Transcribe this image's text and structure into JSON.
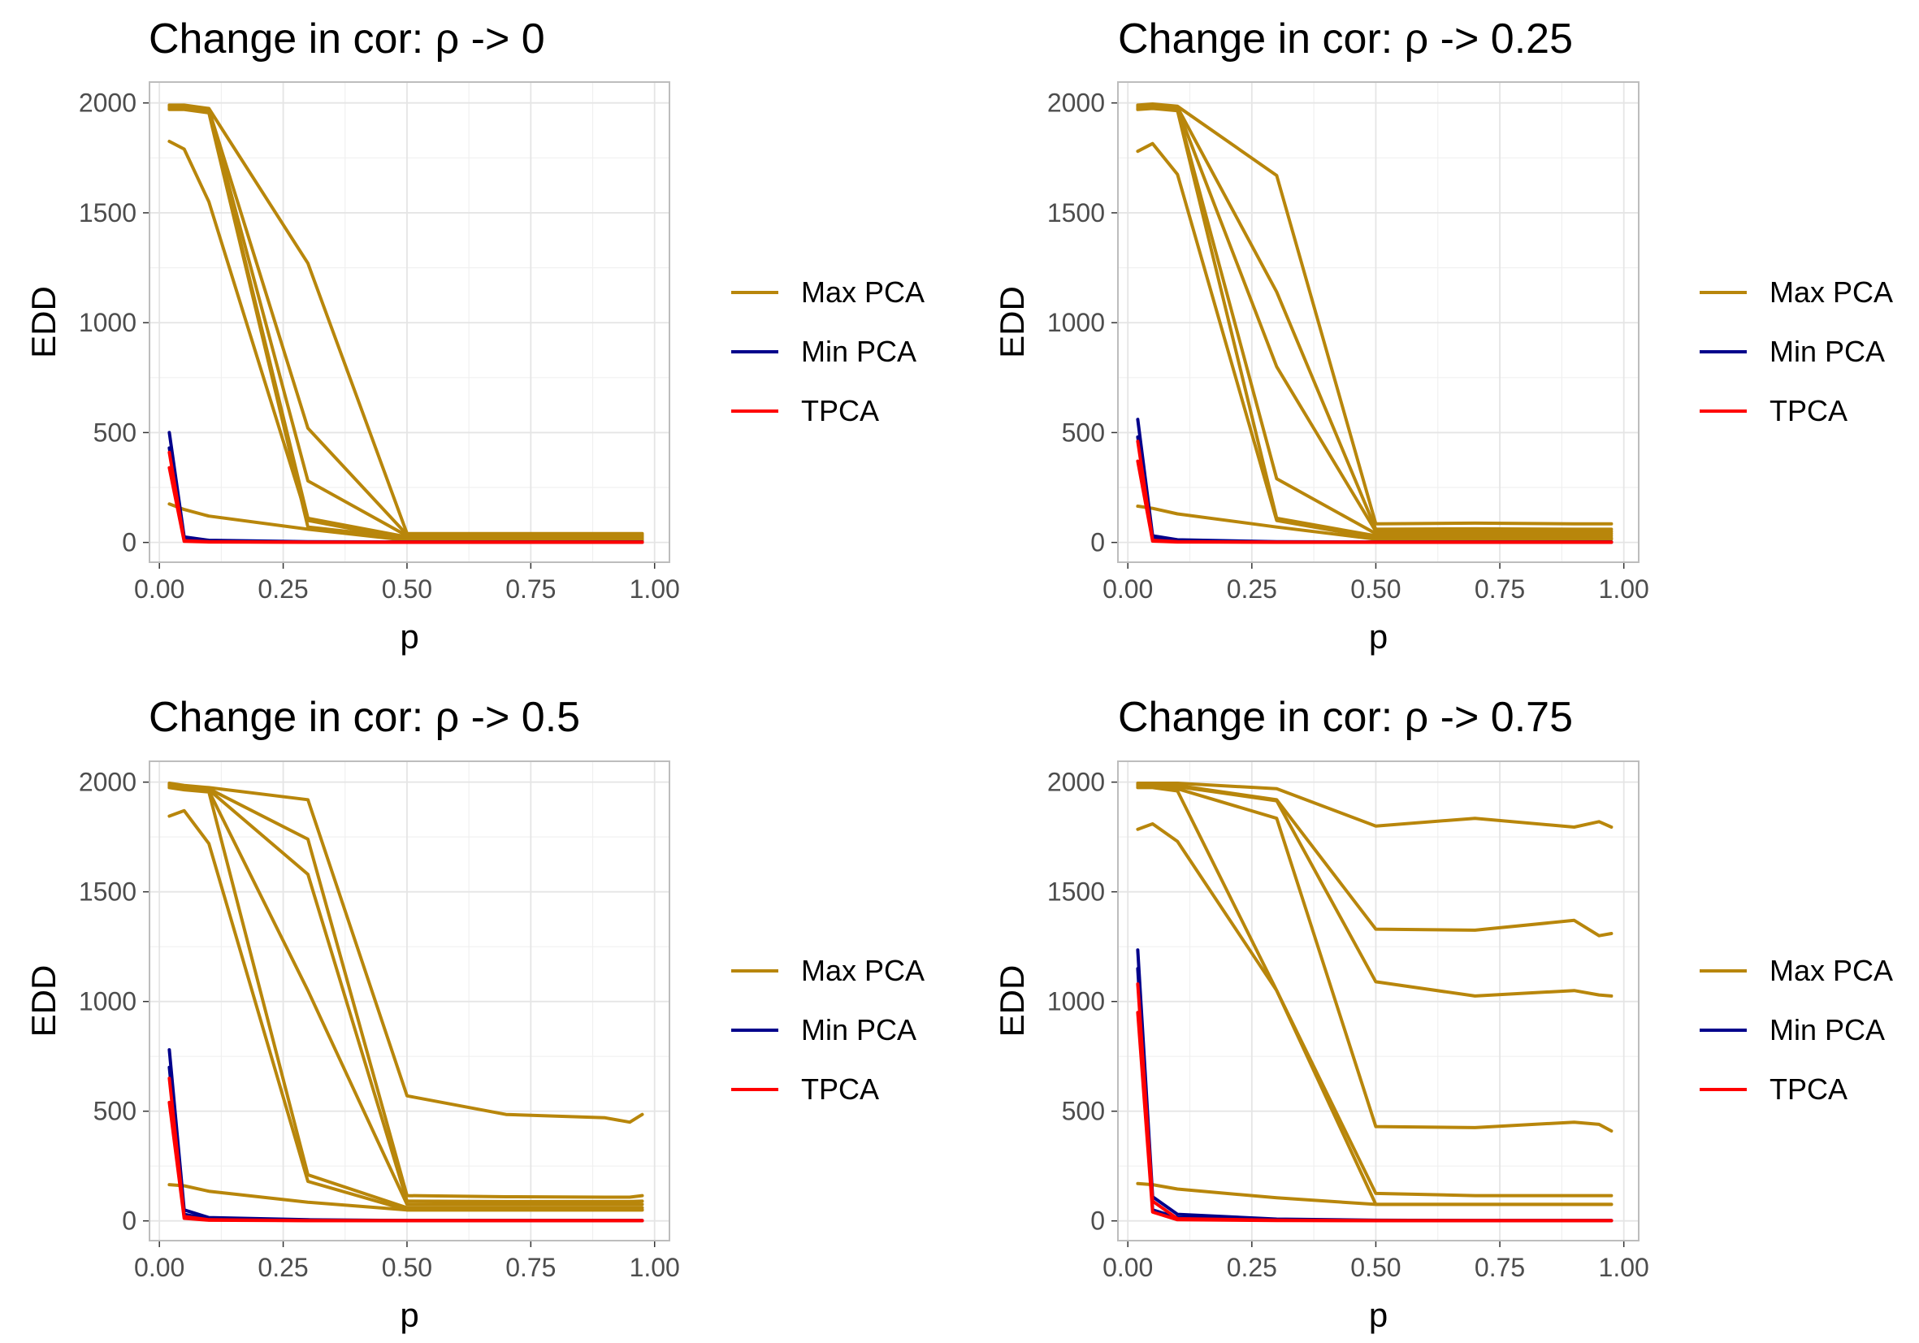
{
  "colors": {
    "max_pca": "#B8860B",
    "min_pca": "#00008B",
    "tpca": "#FF0000",
    "grid": "#e5e5e5",
    "panel_border": "#bdbdbd",
    "tick_text": "#4d4d4d"
  },
  "legend": [
    "Max PCA",
    "Min PCA",
    "TPCA"
  ],
  "chart_data": [
    {
      "type": "line",
      "title": "Change in cor: ρ -> 0",
      "xlabel": "p",
      "ylabel": "EDD",
      "xlim": [
        -0.02,
        1.03
      ],
      "ylim": [
        -90,
        2095
      ],
      "xticks": [
        "0.00",
        "0.25",
        "0.50",
        "0.75",
        "1.00"
      ],
      "yticks": [
        "0",
        "500",
        "1000",
        "1500",
        "2000"
      ],
      "grid": true,
      "legend_position": "right",
      "x": [
        0.02,
        0.05,
        0.1,
        0.3,
        0.5,
        0.7,
        0.9,
        0.95,
        0.975
      ],
      "series": [
        {
          "name": "Max PCA",
          "values": [
            1990,
            1990,
            1975,
            1270,
            40,
            40,
            40,
            40,
            40
          ]
        },
        {
          "name": "Max PCA",
          "values": [
            1985,
            1985,
            1970,
            520,
            35,
            35,
            35,
            35,
            35
          ]
        },
        {
          "name": "Max PCA",
          "values": [
            1980,
            1980,
            1965,
            280,
            30,
            30,
            30,
            30,
            30
          ]
        },
        {
          "name": "Max PCA",
          "values": [
            1975,
            1975,
            1960,
            110,
            25,
            25,
            25,
            25,
            25
          ]
        },
        {
          "name": "Max PCA",
          "values": [
            1970,
            1970,
            1955,
            70,
            20,
            20,
            20,
            20,
            20
          ]
        },
        {
          "name": "Max PCA",
          "values": [
            1825,
            1790,
            1550,
            100,
            15,
            15,
            15,
            15,
            15
          ]
        },
        {
          "name": "Max PCA",
          "values": [
            175,
            150,
            120,
            60,
            10,
            10,
            10,
            10,
            10
          ]
        },
        {
          "name": "Min PCA",
          "values": [
            500,
            25,
            10,
            3,
            2,
            2,
            2,
            2,
            2
          ]
        },
        {
          "name": "Min PCA",
          "values": [
            430,
            15,
            5,
            2,
            1,
            1,
            1,
            1,
            1
          ]
        },
        {
          "name": "TPCA",
          "values": [
            410,
            8,
            3,
            1,
            1,
            1,
            1,
            1,
            1
          ]
        },
        {
          "name": "TPCA",
          "values": [
            340,
            5,
            2,
            1,
            1,
            1,
            1,
            1,
            1
          ]
        }
      ]
    },
    {
      "type": "line",
      "title": "Change in cor: ρ -> 0.25",
      "xlabel": "p",
      "ylabel": "EDD",
      "xlim": [
        -0.02,
        1.03
      ],
      "ylim": [
        -90,
        2095
      ],
      "xticks": [
        "0.00",
        "0.25",
        "0.50",
        "0.75",
        "1.00"
      ],
      "yticks": [
        "0",
        "500",
        "1000",
        "1500",
        "2000"
      ],
      "grid": true,
      "legend_position": "right",
      "x": [
        0.02,
        0.05,
        0.1,
        0.3,
        0.5,
        0.7,
        0.9,
        0.95,
        0.975
      ],
      "series": [
        {
          "name": "Max PCA",
          "values": [
            1990,
            1995,
            1985,
            1670,
            85,
            88,
            85,
            85,
            85
          ]
        },
        {
          "name": "Max PCA",
          "values": [
            1985,
            1990,
            1980,
            1140,
            60,
            62,
            60,
            60,
            60
          ]
        },
        {
          "name": "Max PCA",
          "values": [
            1980,
            1985,
            1975,
            800,
            50,
            50,
            50,
            50,
            50
          ]
        },
        {
          "name": "Max PCA",
          "values": [
            1975,
            1980,
            1970,
            290,
            40,
            40,
            40,
            40,
            40
          ]
        },
        {
          "name": "Max PCA",
          "values": [
            1970,
            1975,
            1965,
            110,
            30,
            30,
            30,
            30,
            30
          ]
        },
        {
          "name": "Max PCA",
          "values": [
            1780,
            1815,
            1675,
            100,
            20,
            20,
            20,
            20,
            20
          ]
        },
        {
          "name": "Max PCA",
          "values": [
            165,
            155,
            130,
            70,
            15,
            15,
            15,
            15,
            15
          ]
        },
        {
          "name": "Min PCA",
          "values": [
            560,
            30,
            12,
            3,
            2,
            2,
            2,
            2,
            2
          ]
        },
        {
          "name": "Min PCA",
          "values": [
            480,
            18,
            6,
            2,
            1,
            1,
            1,
            1,
            1
          ]
        },
        {
          "name": "TPCA",
          "values": [
            460,
            10,
            3,
            1,
            1,
            1,
            1,
            1,
            1
          ]
        },
        {
          "name": "TPCA",
          "values": [
            370,
            6,
            2,
            1,
            1,
            1,
            1,
            1,
            1
          ]
        }
      ]
    },
    {
      "type": "line",
      "title": "Change in cor: ρ -> 0.5",
      "xlabel": "p",
      "ylabel": "EDD",
      "xlim": [
        -0.02,
        1.03
      ],
      "ylim": [
        -90,
        2095
      ],
      "xticks": [
        "0.00",
        "0.25",
        "0.50",
        "0.75",
        "1.00"
      ],
      "yticks": [
        "0",
        "500",
        "1000",
        "1500",
        "2000"
      ],
      "grid": true,
      "legend_position": "right",
      "x": [
        0.02,
        0.05,
        0.1,
        0.3,
        0.5,
        0.7,
        0.9,
        0.95,
        0.975
      ],
      "series": [
        {
          "name": "Max PCA",
          "values": [
            1995,
            1985,
            1975,
            1920,
            570,
            485,
            470,
            450,
            485
          ]
        },
        {
          "name": "Max PCA",
          "values": [
            1990,
            1980,
            1970,
            1740,
            115,
            110,
            108,
            108,
            115
          ]
        },
        {
          "name": "Max PCA",
          "values": [
            1985,
            1975,
            1965,
            1580,
            90,
            88,
            88,
            88,
            90
          ]
        },
        {
          "name": "Max PCA",
          "values": [
            1980,
            1970,
            1960,
            1050,
            75,
            75,
            75,
            75,
            75
          ]
        },
        {
          "name": "Max PCA",
          "values": [
            1975,
            1965,
            1955,
            210,
            60,
            60,
            60,
            60,
            60
          ]
        },
        {
          "name": "Max PCA",
          "values": [
            1845,
            1870,
            1720,
            180,
            50,
            50,
            50,
            50,
            50
          ]
        },
        {
          "name": "Max PCA",
          "values": [
            165,
            160,
            135,
            85,
            50,
            50,
            50,
            50,
            50
          ]
        },
        {
          "name": "Min PCA",
          "values": [
            780,
            50,
            15,
            5,
            2,
            2,
            2,
            2,
            2
          ]
        },
        {
          "name": "Min PCA",
          "values": [
            700,
            30,
            8,
            3,
            1,
            1,
            1,
            1,
            1
          ]
        },
        {
          "name": "TPCA",
          "values": [
            650,
            20,
            5,
            1,
            1,
            1,
            1,
            1,
            1
          ]
        },
        {
          "name": "TPCA",
          "values": [
            540,
            12,
            3,
            1,
            1,
            1,
            1,
            1,
            1
          ]
        }
      ]
    },
    {
      "type": "line",
      "title": "Change in cor: ρ -> 0.75",
      "xlabel": "p",
      "ylabel": "EDD",
      "xlim": [
        -0.02,
        1.03
      ],
      "ylim": [
        -90,
        2095
      ],
      "xticks": [
        "0.00",
        "0.25",
        "0.50",
        "0.75",
        "1.00"
      ],
      "yticks": [
        "0",
        "500",
        "1000",
        "1500",
        "2000"
      ],
      "grid": true,
      "legend_position": "right",
      "x": [
        0.02,
        0.05,
        0.1,
        0.3,
        0.5,
        0.7,
        0.9,
        0.95,
        0.975
      ],
      "series": [
        {
          "name": "Max PCA",
          "values": [
            1995,
            1995,
            1995,
            1970,
            1800,
            1835,
            1795,
            1820,
            1795
          ]
        },
        {
          "name": "Max PCA",
          "values": [
            1990,
            1990,
            1985,
            1920,
            1330,
            1325,
            1370,
            1300,
            1310
          ]
        },
        {
          "name": "Max PCA",
          "values": [
            1985,
            1985,
            1980,
            1915,
            1090,
            1025,
            1050,
            1030,
            1025
          ]
        },
        {
          "name": "Max PCA",
          "values": [
            1980,
            1980,
            1970,
            1835,
            430,
            425,
            450,
            440,
            410
          ]
        },
        {
          "name": "Max PCA",
          "values": [
            1975,
            1975,
            1960,
            1050,
            125,
            115,
            115,
            115,
            115
          ]
        },
        {
          "name": "Max PCA",
          "values": [
            1785,
            1810,
            1730,
            1050,
            75,
            75,
            75,
            75,
            75
          ]
        },
        {
          "name": "Max PCA",
          "values": [
            170,
            165,
            145,
            105,
            75,
            75,
            75,
            75,
            75
          ]
        },
        {
          "name": "Min PCA",
          "values": [
            1235,
            110,
            30,
            8,
            3,
            2,
            2,
            2,
            2
          ]
        },
        {
          "name": "Min PCA",
          "values": [
            1150,
            50,
            15,
            5,
            2,
            1,
            1,
            1,
            1
          ]
        },
        {
          "name": "TPCA",
          "values": [
            1080,
            90,
            10,
            3,
            1,
            1,
            1,
            1,
            1
          ]
        },
        {
          "name": "TPCA",
          "values": [
            950,
            40,
            5,
            2,
            1,
            1,
            1,
            1,
            1
          ]
        }
      ]
    }
  ]
}
